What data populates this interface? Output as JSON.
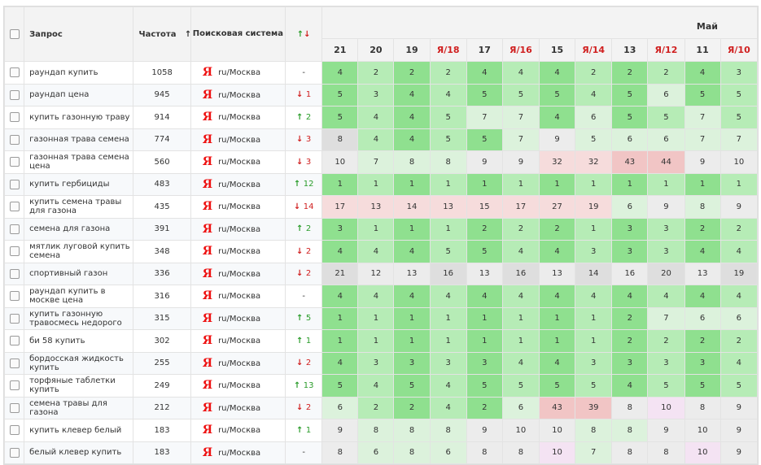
{
  "header": {
    "query": "Запрос",
    "frequency": "Частота",
    "sort_icon": "↑",
    "engine": "Поисковая система",
    "trend": "↑↓",
    "month": "Май",
    "dates": [
      "21",
      "20",
      "19",
      "Я/18",
      "17",
      "Я/16",
      "15",
      "Я/14",
      "13",
      "Я/12",
      "11",
      "Я/10"
    ]
  },
  "colors": {
    "green_strong": "#8fe08f",
    "green": "#b6ecb6",
    "green_light": "#dcf2dc",
    "neutral": "#dedede",
    "neutral_light": "#ececec",
    "red_light": "#f6dcdc",
    "red": "#f1c5c5",
    "pink": "#f4e3f3",
    "up_arrow": "#2a9c2a",
    "down_arrow": "#d01f1f",
    "yandex": "#e11111"
  },
  "rows": [
    {
      "query": "раундап купить",
      "freq": "1058",
      "engine": "ru/Москва",
      "dir": "",
      "delta": "-",
      "pos": [
        "4",
        "2",
        "2",
        "2",
        "4",
        "4",
        "4",
        "2",
        "2",
        "2",
        "4",
        "3"
      ]
    },
    {
      "query": "раундап цена",
      "freq": "945",
      "engine": "ru/Москва",
      "dir": "down",
      "delta": "1",
      "pos": [
        "5",
        "3",
        "4",
        "4",
        "5",
        "5",
        "5",
        "4",
        "5",
        "6",
        "5",
        "5"
      ]
    },
    {
      "query": "купить газонную траву",
      "freq": "914",
      "engine": "ru/Москва",
      "dir": "up",
      "delta": "2",
      "pos": [
        "5",
        "4",
        "4",
        "5",
        "7",
        "7",
        "4",
        "6",
        "5",
        "5",
        "7",
        "5"
      ]
    },
    {
      "query": "газонная трава семена",
      "freq": "774",
      "engine": "ru/Москва",
      "dir": "down",
      "delta": "3",
      "pos": [
        "8",
        "4",
        "4",
        "5",
        "5",
        "7",
        "9",
        "5",
        "6",
        "6",
        "7",
        "7"
      ]
    },
    {
      "query": "газонная трава семена цена",
      "freq": "560",
      "engine": "ru/Москва",
      "dir": "down",
      "delta": "3",
      "pos": [
        "10",
        "7",
        "8",
        "8",
        "9",
        "9",
        "32",
        "32",
        "43",
        "44",
        "9",
        "10"
      ]
    },
    {
      "query": "купить гербициды",
      "freq": "483",
      "engine": "ru/Москва",
      "dir": "up",
      "delta": "12",
      "pos": [
        "1",
        "1",
        "1",
        "1",
        "1",
        "1",
        "1",
        "1",
        "1",
        "1",
        "1",
        "1"
      ]
    },
    {
      "query": "купить семена травы для газона",
      "freq": "435",
      "engine": "ru/Москва",
      "dir": "down",
      "delta": "14",
      "pos": [
        "17",
        "13",
        "14",
        "13",
        "15",
        "17",
        "27",
        "19",
        "6",
        "9",
        "8",
        "9"
      ]
    },
    {
      "query": "семена для газона",
      "freq": "391",
      "engine": "ru/Москва",
      "dir": "up",
      "delta": "2",
      "pos": [
        "3",
        "1",
        "1",
        "1",
        "2",
        "2",
        "2",
        "1",
        "3",
        "3",
        "2",
        "2"
      ]
    },
    {
      "query": "мятлик луговой купить семена",
      "freq": "348",
      "engine": "ru/Москва",
      "dir": "down",
      "delta": "2",
      "pos": [
        "4",
        "4",
        "4",
        "5",
        "5",
        "4",
        "4",
        "3",
        "3",
        "3",
        "4",
        "4"
      ]
    },
    {
      "query": "спортивный газон",
      "freq": "336",
      "engine": "ru/Москва",
      "dir": "down",
      "delta": "2",
      "pos": [
        "21",
        "12",
        "13",
        "16",
        "13",
        "16",
        "13",
        "14",
        "16",
        "20",
        "13",
        "19"
      ]
    },
    {
      "query": "раундап купить в москве цена",
      "freq": "316",
      "engine": "ru/Москва",
      "dir": "",
      "delta": "-",
      "pos": [
        "4",
        "4",
        "4",
        "4",
        "4",
        "4",
        "4",
        "4",
        "4",
        "4",
        "4",
        "4"
      ]
    },
    {
      "query": "купить газонную травосмесь недорого",
      "freq": "315",
      "engine": "ru/Москва",
      "dir": "up",
      "delta": "5",
      "pos": [
        "1",
        "1",
        "1",
        "1",
        "1",
        "1",
        "1",
        "1",
        "2",
        "7",
        "6",
        "6"
      ]
    },
    {
      "query": "би 58 купить",
      "freq": "302",
      "engine": "ru/Москва",
      "dir": "up",
      "delta": "1",
      "pos": [
        "1",
        "1",
        "1",
        "1",
        "1",
        "1",
        "1",
        "1",
        "2",
        "2",
        "2",
        "2"
      ]
    },
    {
      "query": "бордосская жидкость купить",
      "freq": "255",
      "engine": "ru/Москва",
      "dir": "down",
      "delta": "2",
      "pos": [
        "4",
        "3",
        "3",
        "3",
        "3",
        "4",
        "4",
        "3",
        "3",
        "3",
        "3",
        "4"
      ]
    },
    {
      "query": "торфяные таблетки купить",
      "freq": "249",
      "engine": "ru/Москва",
      "dir": "up",
      "delta": "13",
      "pos": [
        "5",
        "4",
        "5",
        "4",
        "5",
        "5",
        "5",
        "5",
        "4",
        "5",
        "5",
        "5"
      ]
    },
    {
      "query": "семена травы для газона",
      "freq": "212",
      "engine": "ru/Москва",
      "dir": "down",
      "delta": "2",
      "pos": [
        "6",
        "2",
        "2",
        "4",
        "2",
        "6",
        "43",
        "39",
        "8",
        "10",
        "8",
        "9"
      ]
    },
    {
      "query": "купить клевер белый",
      "freq": "183",
      "engine": "ru/Москва",
      "dir": "up",
      "delta": "1",
      "pos": [
        "9",
        "8",
        "8",
        "8",
        "9",
        "10",
        "10",
        "8",
        "8",
        "9",
        "10",
        "9"
      ]
    },
    {
      "query": "белый клевер купить",
      "freq": "183",
      "engine": "ru/Москва",
      "dir": "",
      "delta": "-",
      "pos": [
        "8",
        "6",
        "8",
        "6",
        "8",
        "8",
        "10",
        "7",
        "8",
        "8",
        "10",
        "9"
      ]
    }
  ],
  "cell_colors": [
    [
      "gs",
      "g",
      "gs",
      "g",
      "gs",
      "g",
      "gs",
      "g",
      "gs",
      "g",
      "gs",
      "g"
    ],
    [
      "gs",
      "g",
      "gs",
      "g",
      "gs",
      "g",
      "gs",
      "g",
      "gs",
      "gl",
      "gs",
      "g"
    ],
    [
      "gs",
      "g",
      "gs",
      "g",
      "gl",
      "gl",
      "gs",
      "gl",
      "gs",
      "g",
      "gl",
      "g"
    ],
    [
      "n",
      "g",
      "gs",
      "g",
      "gs",
      "gl",
      "nl",
      "gl",
      "gl",
      "gl",
      "gl",
      "gl"
    ],
    [
      "nl",
      "gl",
      "gl",
      "gl",
      "nl",
      "nl",
      "rl",
      "rl",
      "r",
      "r",
      "nl",
      "nl"
    ],
    [
      "gs",
      "g",
      "gs",
      "g",
      "gs",
      "g",
      "gs",
      "g",
      "gs",
      "g",
      "gs",
      "g"
    ],
    [
      "rl",
      "rl",
      "rl",
      "rl",
      "rl",
      "rl",
      "rl",
      "rl",
      "gl",
      "nl",
      "gl",
      "nl"
    ],
    [
      "gs",
      "g",
      "gs",
      "g",
      "gs",
      "g",
      "gs",
      "g",
      "gs",
      "g",
      "gs",
      "g"
    ],
    [
      "gs",
      "g",
      "gs",
      "g",
      "gs",
      "g",
      "gs",
      "g",
      "gs",
      "g",
      "gs",
      "g"
    ],
    [
      "n",
      "nl",
      "nl",
      "n",
      "nl",
      "n",
      "nl",
      "n",
      "nl",
      "n",
      "nl",
      "n"
    ],
    [
      "gs",
      "g",
      "gs",
      "g",
      "gs",
      "g",
      "gs",
      "g",
      "gs",
      "g",
      "gs",
      "g"
    ],
    [
      "gs",
      "g",
      "gs",
      "g",
      "gs",
      "g",
      "gs",
      "g",
      "gs",
      "gl",
      "gl",
      "gl"
    ],
    [
      "gs",
      "g",
      "gs",
      "g",
      "gs",
      "g",
      "gs",
      "g",
      "gs",
      "g",
      "gs",
      "g"
    ],
    [
      "gs",
      "g",
      "gs",
      "g",
      "gs",
      "g",
      "gs",
      "g",
      "gs",
      "g",
      "gs",
      "g"
    ],
    [
      "gs",
      "g",
      "gs",
      "g",
      "gs",
      "g",
      "gs",
      "g",
      "gs",
      "g",
      "gs",
      "g"
    ],
    [
      "gl",
      "g",
      "gs",
      "g",
      "gs",
      "gl",
      "r",
      "r",
      "nl",
      "p",
      "nl",
      "nl"
    ],
    [
      "nl",
      "gl",
      "gl",
      "gl",
      "nl",
      "nl",
      "nl",
      "gl",
      "gl",
      "nl",
      "nl",
      "nl"
    ],
    [
      "nl",
      "gl",
      "gl",
      "gl",
      "nl",
      "nl",
      "p",
      "gl",
      "nl",
      "nl",
      "p",
      "nl"
    ]
  ]
}
